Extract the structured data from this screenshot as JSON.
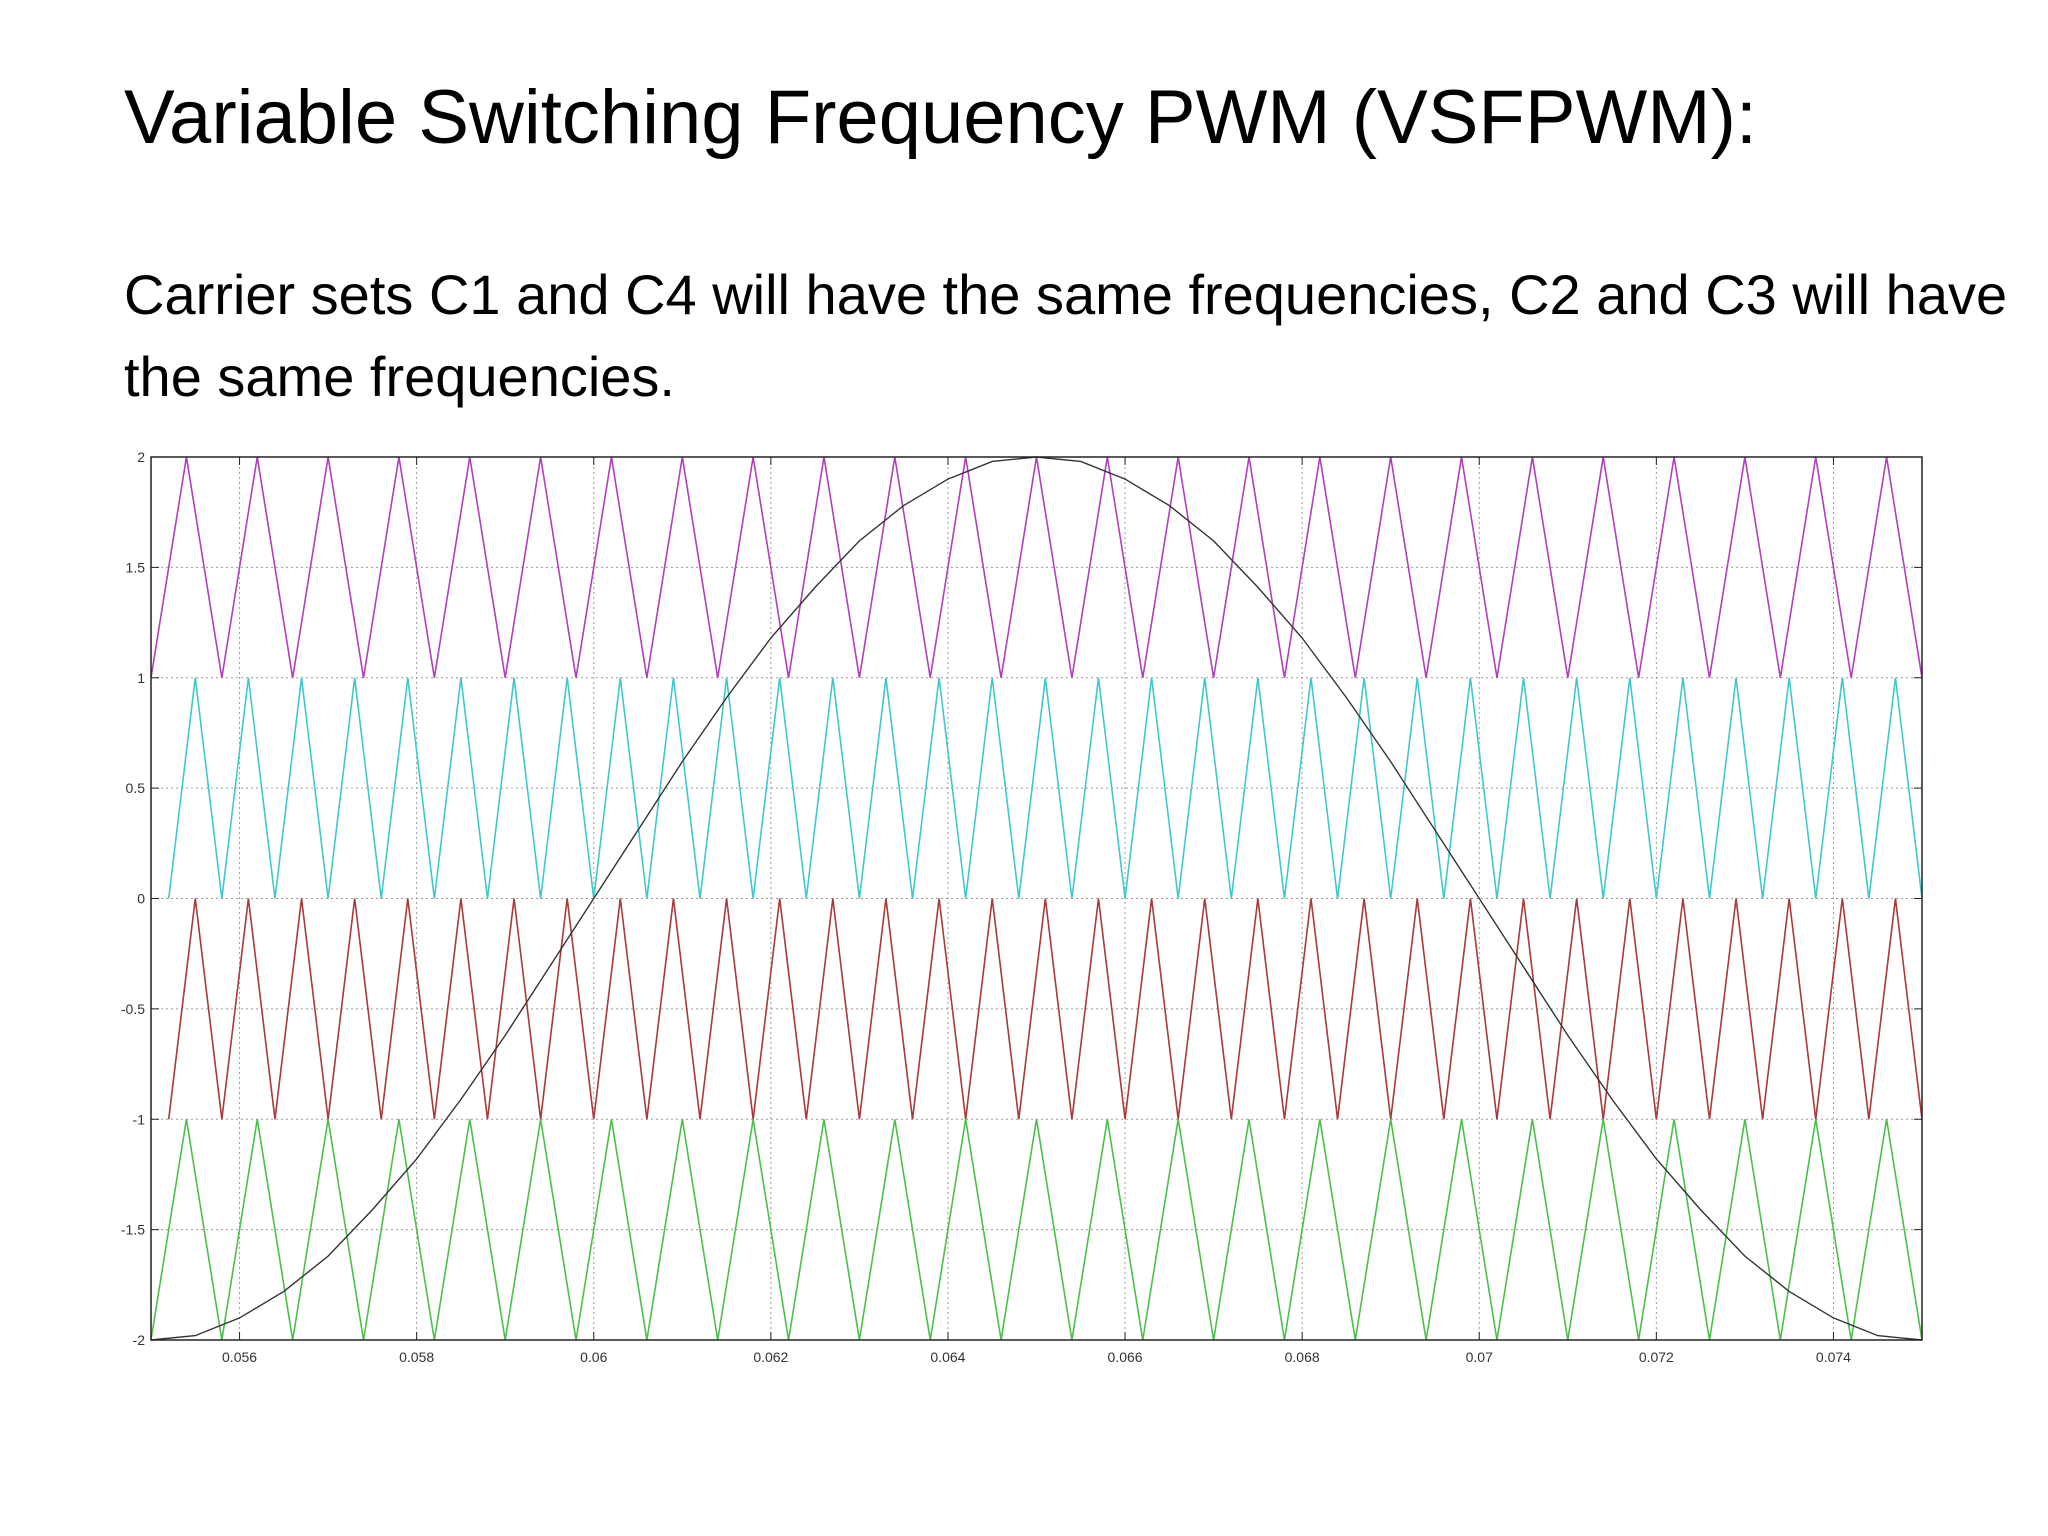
{
  "slide": {
    "title": "Variable Switching Frequency PWM (VSFPWM):",
    "body": "Carrier sets C1 and C4 will have the same frequencies, C2 and C3 will have the same frequencies."
  },
  "chart_data": {
    "type": "line",
    "title": "",
    "xlabel": "",
    "ylabel": "",
    "xlim": [
      0.055,
      0.075
    ],
    "ylim": [
      -2,
      2
    ],
    "grid": true,
    "x_ticks": [
      0.056,
      0.058,
      0.06,
      0.062,
      0.064,
      0.066,
      0.068,
      0.07,
      0.072,
      0.074
    ],
    "x_tick_labels": [
      "0.056",
      "0.058",
      "0.06",
      "0.062",
      "0.064",
      "0.066",
      "0.068",
      "0.07",
      "0.072",
      "0.074"
    ],
    "y_ticks": [
      2,
      1.5,
      1,
      0.5,
      0,
      -0.5,
      -1,
      -1.5,
      -2
    ],
    "y_tick_labels": [
      "2",
      "1.5",
      "1",
      "0.5",
      "0",
      "-0.5",
      "-1",
      "-1.5",
      "-2"
    ],
    "series": [
      {
        "kind": "triangle-carrier",
        "color": "#b040b8",
        "ymin": 1,
        "ymax": 2,
        "peak_times": [
          0.0554,
          0.0562,
          0.057,
          0.0578,
          0.0586,
          0.0594,
          0.0602,
          0.061,
          0.0618,
          0.0626,
          0.0634,
          0.0642,
          0.065,
          0.0658,
          0.0666,
          0.0674,
          0.0682,
          0.069,
          0.0698,
          0.0706,
          0.0714,
          0.0722,
          0.073,
          0.0738,
          0.0746
        ]
      },
      {
        "kind": "triangle-carrier",
        "color": "#40c8cc",
        "ymin": 0,
        "ymax": 1,
        "peak_times": [
          0.0555,
          0.0561,
          0.0567,
          0.0573,
          0.0579,
          0.0585,
          0.0591,
          0.0597,
          0.0603,
          0.0609,
          0.0615,
          0.0621,
          0.0627,
          0.0633,
          0.0639,
          0.0645,
          0.0651,
          0.0657,
          0.0663,
          0.0669,
          0.0675,
          0.0681,
          0.0687,
          0.0693,
          0.0699,
          0.0705,
          0.0711,
          0.0717,
          0.0723,
          0.0729,
          0.0735,
          0.0741,
          0.0747
        ]
      },
      {
        "kind": "triangle-carrier",
        "color": "#a83a3a",
        "ymin": -1,
        "ymax": 0,
        "peak_times": [
          0.0555,
          0.0561,
          0.0567,
          0.0573,
          0.0579,
          0.0585,
          0.0591,
          0.0597,
          0.0603,
          0.0609,
          0.0615,
          0.0621,
          0.0627,
          0.0633,
          0.0639,
          0.0645,
          0.0651,
          0.0657,
          0.0663,
          0.0669,
          0.0675,
          0.0681,
          0.0687,
          0.0693,
          0.0699,
          0.0705,
          0.0711,
          0.0717,
          0.0723,
          0.0729,
          0.0735,
          0.0741,
          0.0747
        ]
      },
      {
        "kind": "triangle-carrier",
        "color": "#4ac04a",
        "ymin": -2,
        "ymax": -1,
        "peak_times": [
          0.0554,
          0.0562,
          0.057,
          0.0578,
          0.0586,
          0.0594,
          0.0602,
          0.061,
          0.0618,
          0.0626,
          0.0634,
          0.0642,
          0.065,
          0.0658,
          0.0666,
          0.0674,
          0.0682,
          0.069,
          0.0698,
          0.0706,
          0.0714,
          0.0722,
          0.073,
          0.0738,
          0.0746
        ]
      },
      {
        "kind": "sine-reference",
        "color": "#333333",
        "amplitude": 2,
        "min_time": 0.055,
        "max_time": 0.065,
        "x": [
          0.055,
          0.0555,
          0.056,
          0.0565,
          0.057,
          0.0575,
          0.058,
          0.0585,
          0.059,
          0.0595,
          0.06,
          0.0605,
          0.061,
          0.0615,
          0.062,
          0.0625,
          0.063,
          0.0635,
          0.064,
          0.0645,
          0.065,
          0.0655,
          0.066,
          0.0665,
          0.067,
          0.0675,
          0.068,
          0.0685,
          0.069,
          0.0695,
          0.07,
          0.0705,
          0.071,
          0.0715,
          0.072,
          0.0725,
          0.073,
          0.0735,
          0.074,
          0.0745,
          0.075
        ],
        "y": [
          -2,
          -1.98,
          -1.9,
          -1.78,
          -1.62,
          -1.41,
          -1.18,
          -0.91,
          -0.62,
          -0.31,
          0,
          0.31,
          0.62,
          0.91,
          1.18,
          1.41,
          1.62,
          1.78,
          1.9,
          1.98,
          2,
          1.98,
          1.9,
          1.78,
          1.62,
          1.41,
          1.18,
          0.91,
          0.62,
          0.31,
          0,
          -0.31,
          -0.62,
          -0.91,
          -1.18,
          -1.41,
          -1.62,
          -1.78,
          -1.9,
          -1.98,
          -2
        ]
      }
    ]
  }
}
